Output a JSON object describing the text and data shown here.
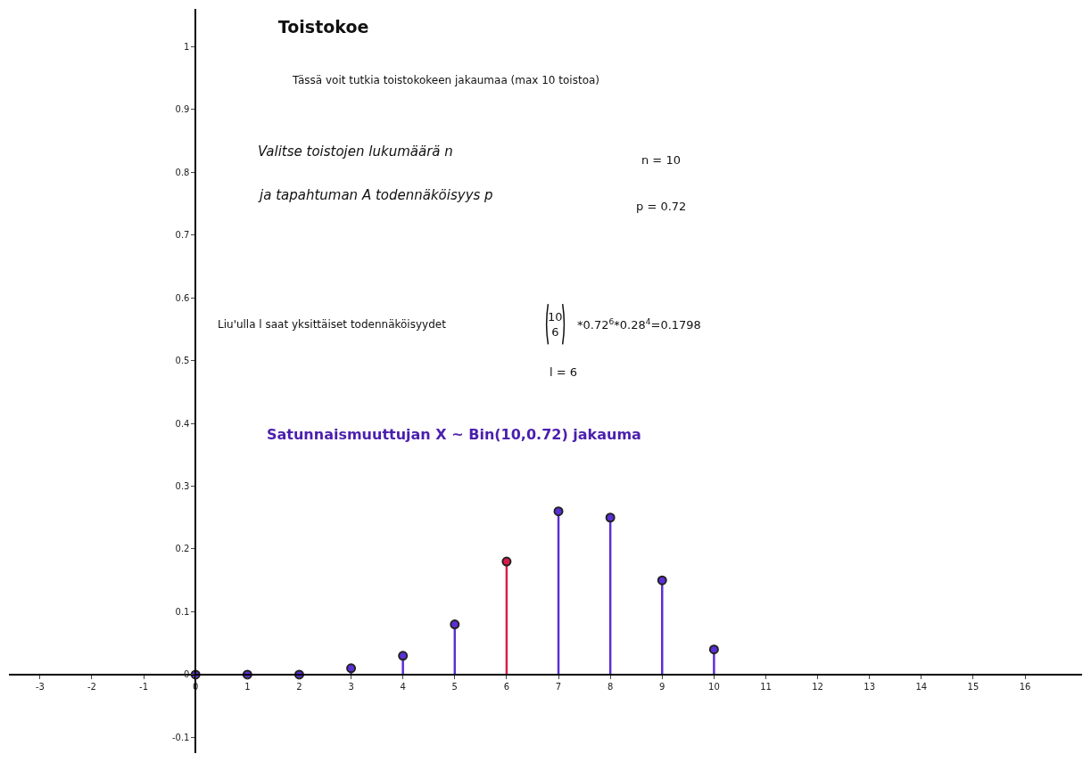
{
  "chart_data": {
    "type": "lollipop",
    "title": "Toistokoe",
    "subtitle": "Tässä voit tutkia toistokokeen jakaumaa (max 10 toistoa)",
    "x": [
      0,
      1,
      2,
      3,
      4,
      5,
      6,
      7,
      8,
      9,
      10
    ],
    "values": [
      0,
      0,
      0,
      0.01,
      0.03,
      0.08,
      0.18,
      0.26,
      0.25,
      0.15,
      0.04
    ],
    "colors": [
      "#5b2fd6",
      "#5b2fd6",
      "#5b2fd6",
      "#5b2fd6",
      "#5b2fd6",
      "#5b2fd6",
      "#d81b4a",
      "#5b2fd6",
      "#5b2fd6",
      "#5b2fd6",
      "#5b2fd6"
    ],
    "marker": "circle",
    "xlim": [
      -3.6,
      17.1
    ],
    "ylim": [
      -0.125,
      1.06
    ],
    "xticks": [
      -3,
      -2,
      -1,
      0,
      1,
      2,
      3,
      4,
      5,
      6,
      7,
      8,
      9,
      10,
      11,
      12,
      13,
      14,
      15,
      16
    ],
    "yticks": [
      -0.1,
      0,
      0.1,
      0.2,
      0.3,
      0.4,
      0.5,
      0.6,
      0.7,
      0.8,
      0.9,
      1
    ],
    "annotations": [
      "Valitse toistojen lukumäärä n",
      "ja tapahtuman A todennäköisyys p",
      "n = 10",
      "p = 0.72",
      "Liu'ulla l saat yksittäiset todennäköisyydet",
      "10\n6",
      "*0.72$^{6}$*0.28$^{4}$=0.1798",
      "l = 6",
      "Satunnaismuuttujan X ~ Bin(10,0.72) jakauma"
    ]
  }
}
